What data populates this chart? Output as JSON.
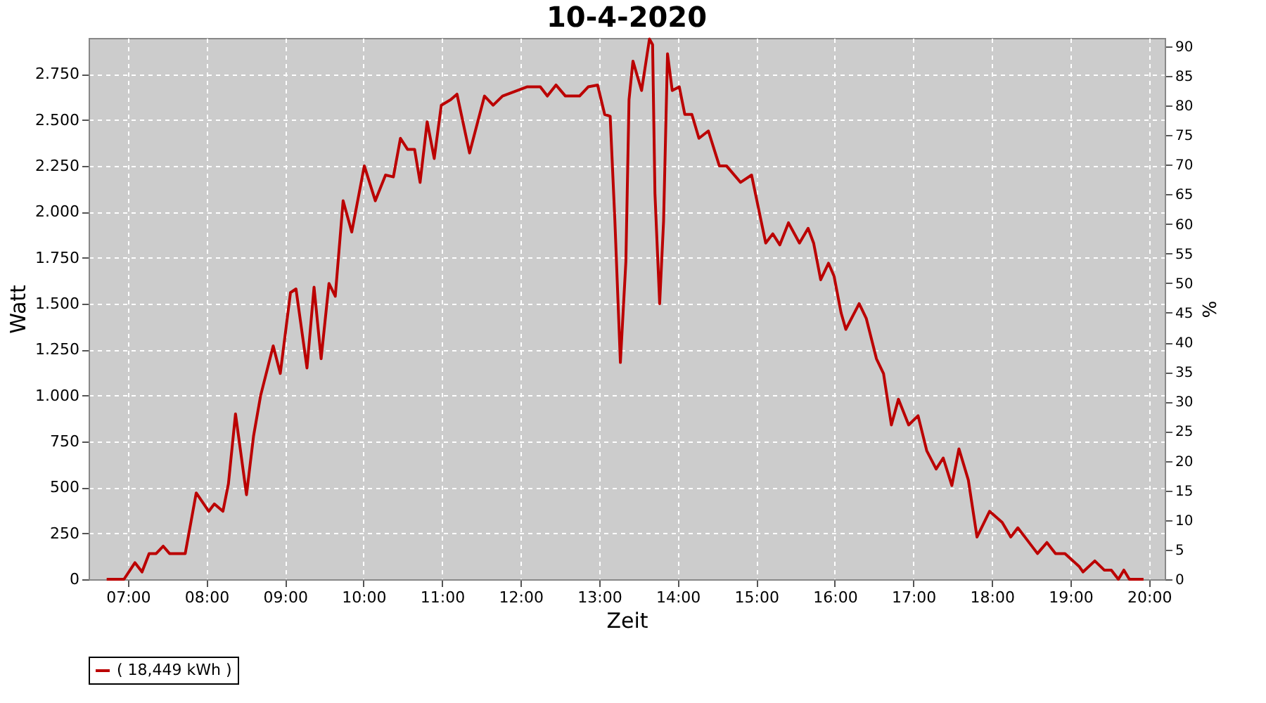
{
  "chart_data": {
    "type": "line",
    "title": "10-4-2020",
    "xlabel": "Zeit",
    "ylabel": "Watt",
    "y2label": "%",
    "xlim": [
      6.5,
      20.2
    ],
    "xticks": [
      {
        "value": 7,
        "label": "07:00"
      },
      {
        "value": 8,
        "label": "08:00"
      },
      {
        "value": 9,
        "label": "09:00"
      },
      {
        "value": 10,
        "label": "10:00"
      },
      {
        "value": 11,
        "label": "11:00"
      },
      {
        "value": 12,
        "label": "12:00"
      },
      {
        "value": 13,
        "label": "13:00"
      },
      {
        "value": 14,
        "label": "14:00"
      },
      {
        "value": 15,
        "label": "15:00"
      },
      {
        "value": 16,
        "label": "16:00"
      },
      {
        "value": 17,
        "label": "17:00"
      },
      {
        "value": 18,
        "label": "18:00"
      },
      {
        "value": 19,
        "label": "19:00"
      },
      {
        "value": 20,
        "label": "20:00"
      }
    ],
    "ylim": [
      0,
      2946
    ],
    "yticks": [
      0,
      250,
      500,
      750,
      {
        "value": 1000,
        "label": "1.000"
      },
      {
        "value": 1250,
        "label": "1.250"
      },
      {
        "value": 1500,
        "label": "1.500"
      },
      {
        "value": 1750,
        "label": "1.750"
      },
      {
        "value": 2000,
        "label": "2.000"
      },
      {
        "value": 2250,
        "label": "2.250"
      },
      {
        "value": 2500,
        "label": "2.500"
      },
      {
        "value": 2750,
        "label": "2.750"
      }
    ],
    "y2lim": [
      0,
      91.4
    ],
    "y2ticks": [
      0,
      5,
      10,
      15,
      20,
      25,
      30,
      35,
      40,
      45,
      50,
      55,
      60,
      65,
      70,
      75,
      80,
      85,
      90
    ],
    "grid": true,
    "legend": "bottom",
    "marker": "none",
    "line_style": "solid",
    "series": [
      {
        "name": "( 18,449 kWh )",
        "color": "#bb0000",
        "x": [
          6.73,
          6.95,
          7.09,
          7.18,
          7.27,
          7.36,
          7.45,
          7.53,
          7.73,
          7.87,
          8.03,
          8.1,
          8.21,
          8.28,
          8.37,
          8.51,
          8.6,
          8.69,
          8.85,
          8.94,
          9.07,
          9.14,
          9.28,
          9.37,
          9.46,
          9.56,
          9.64,
          9.74,
          9.85,
          10.01,
          10.15,
          10.28,
          10.38,
          10.47,
          10.56,
          10.65,
          10.72,
          10.81,
          10.9,
          10.99,
          11.11,
          11.19,
          11.35,
          11.54,
          11.65,
          11.77,
          12.08,
          12.25,
          12.34,
          12.45,
          12.57,
          12.75,
          12.86,
          12.98,
          13.07,
          13.14,
          13.2,
          13.27,
          13.34,
          13.38,
          13.43,
          13.54,
          13.64,
          13.68,
          13.71,
          13.77,
          13.82,
          13.87,
          13.93,
          14.02,
          14.09,
          14.18,
          14.27,
          14.39,
          14.53,
          14.62,
          14.8,
          14.94,
          15.12,
          15.21,
          15.3,
          15.41,
          15.55,
          15.66,
          15.73,
          15.82,
          15.92,
          15.99,
          16.08,
          16.14,
          16.31,
          16.4,
          16.53,
          16.62,
          16.72,
          16.81,
          16.94,
          17.06,
          17.17,
          17.29,
          17.38,
          17.49,
          17.58,
          17.7,
          17.81,
          17.97,
          18.13,
          18.24,
          18.33,
          18.42,
          18.58,
          18.7,
          18.81,
          18.93,
          19.11,
          19.16,
          19.31,
          19.43,
          19.52,
          19.61,
          19.68,
          19.75,
          19.93
        ],
        "values": [
          0,
          0,
          90,
          40,
          140,
          140,
          180,
          140,
          140,
          470,
          370,
          410,
          370,
          520,
          900,
          460,
          780,
          1000,
          1270,
          1120,
          1560,
          1580,
          1150,
          1590,
          1200,
          1610,
          1540,
          2060,
          1890,
          2250,
          2060,
          2200,
          2190,
          2400,
          2340,
          2340,
          2160,
          2490,
          2290,
          2580,
          2610,
          2640,
          2320,
          2630,
          2580,
          2630,
          2680,
          2680,
          2630,
          2690,
          2630,
          2630,
          2680,
          2690,
          2530,
          2520,
          1950,
          1180,
          1730,
          2610,
          2820,
          2660,
          2940,
          2910,
          2100,
          1500,
          1950,
          2860,
          2660,
          2680,
          2530,
          2530,
          2400,
          2440,
          2250,
          2250,
          2160,
          2200,
          1830,
          1880,
          1820,
          1940,
          1830,
          1910,
          1830,
          1630,
          1720,
          1650,
          1450,
          1360,
          1500,
          1420,
          1200,
          1120,
          840,
          980,
          840,
          890,
          700,
          600,
          660,
          510,
          710,
          540,
          230,
          370,
          310,
          230,
          280,
          230,
          140,
          200,
          140,
          140,
          70,
          40,
          100,
          50,
          50,
          0,
          50,
          0,
          0
        ]
      }
    ]
  }
}
